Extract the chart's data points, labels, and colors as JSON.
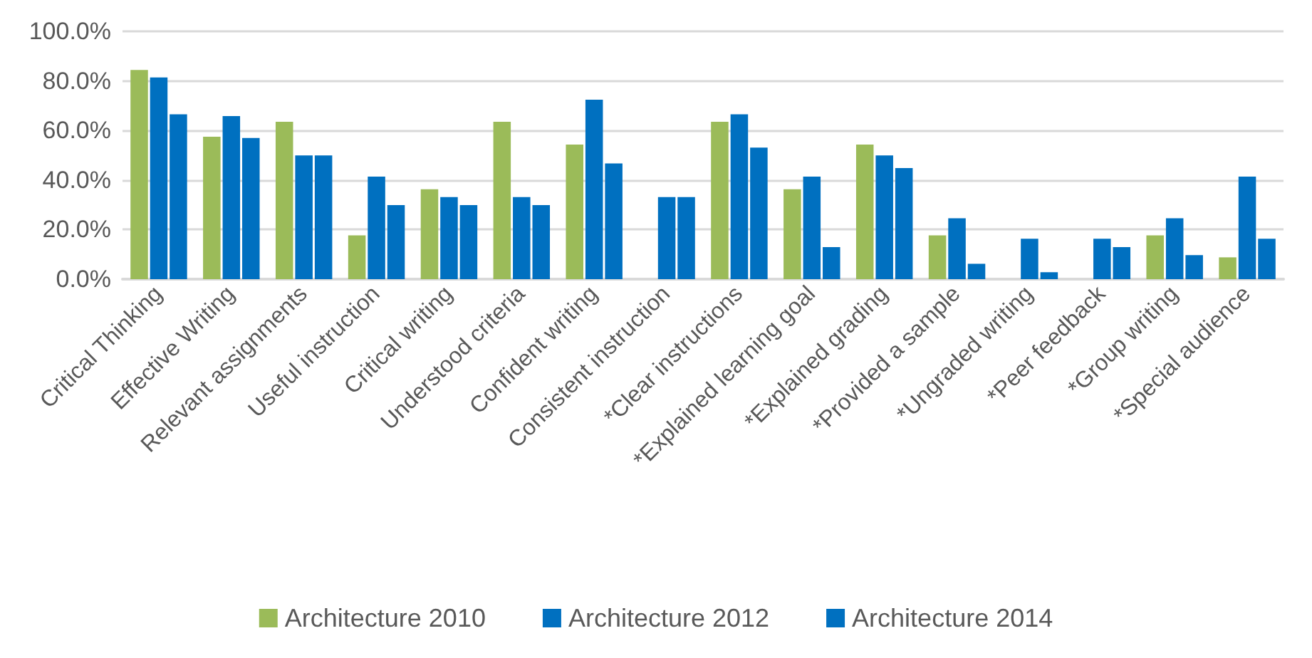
{
  "chart_data": {
    "type": "bar",
    "categories": [
      "Critical Thinking",
      "Effective Writing",
      "Relevant assignments",
      "Useful instruction",
      "Critical writing",
      "Understood criteria",
      "Confident writing",
      "Consistent instruction",
      "*Clear instructions",
      "*Explained learning goal",
      "*Explained grading",
      "*Provided a sample",
      "*Ungraded writing",
      "*Peer feedback",
      "*Group writing",
      "*Special audience"
    ],
    "series": [
      {
        "name": "Architecture 2010",
        "color": "#9bbb59",
        "values": [
          84.4,
          57.5,
          63.5,
          17.7,
          36.3,
          63.5,
          54.3,
          null,
          63.5,
          36.3,
          54.3,
          17.7,
          null,
          null,
          17.7,
          8.8
        ]
      },
      {
        "name": "Architecture 2012",
        "color": "#0070c0",
        "values": [
          81.4,
          65.8,
          49.9,
          41.4,
          33.1,
          33.1,
          72.4,
          33.1,
          66.5,
          41.4,
          49.9,
          24.6,
          16.3,
          16.3,
          24.6,
          41.4
        ]
      },
      {
        "name": "Architecture 2014",
        "color": "#0070c0",
        "values": [
          66.5,
          57.0,
          49.9,
          29.9,
          29.9,
          29.9,
          46.7,
          33.1,
          53.1,
          12.9,
          44.8,
          6.2,
          2.8,
          12.9,
          9.7,
          16.3
        ]
      }
    ],
    "ylim": [
      0,
      100
    ],
    "yticks": [
      {
        "value": 0,
        "label": "0.0%"
      },
      {
        "value": 20,
        "label": "20.0%"
      },
      {
        "value": 40,
        "label": "40.0%"
      },
      {
        "value": 60,
        "label": "60.0%"
      },
      {
        "value": 80,
        "label": "80.0%"
      },
      {
        "value": 100,
        "label": "100.0%"
      }
    ],
    "grid": "y",
    "legend": "bottom"
  }
}
